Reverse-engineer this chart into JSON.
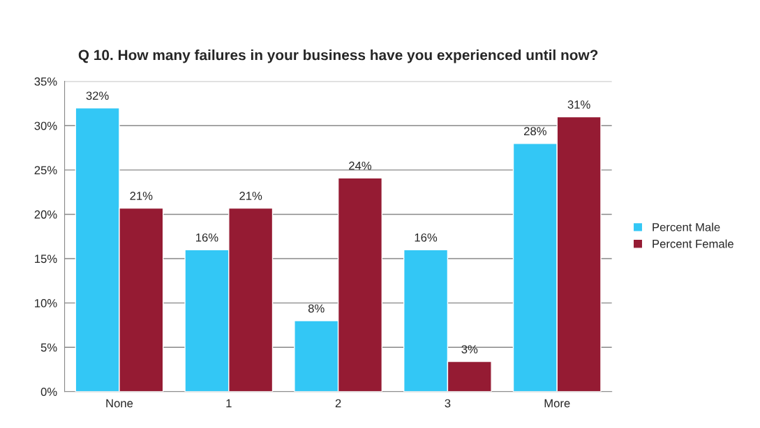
{
  "chart_data": {
    "type": "bar",
    "title": "Q 10. How many failures in your business have you experienced until now?",
    "categories": [
      "None",
      "1",
      "2",
      "3",
      "More"
    ],
    "series": [
      {
        "name": "Percent Male",
        "color": "#33c7f5",
        "values": [
          32,
          16,
          8,
          16,
          28
        ],
        "value_labels": [
          "32%",
          "16%",
          "8%",
          "16%",
          "28%"
        ]
      },
      {
        "name": "Percent Female",
        "color": "#951b33",
        "values": [
          20.7,
          20.7,
          24.1,
          3.4,
          31
        ],
        "value_labels": [
          "21%",
          "21%",
          "24%",
          "3%",
          "31%"
        ]
      }
    ],
    "ylim": [
      0,
      35
    ],
    "yticks": [
      {
        "value": 0,
        "label": "0%"
      },
      {
        "value": 5,
        "label": "5%"
      },
      {
        "value": 10,
        "label": "10%"
      },
      {
        "value": 15,
        "label": "15%"
      },
      {
        "value": 20,
        "label": "20%"
      },
      {
        "value": 25,
        "label": "25%"
      },
      {
        "value": 30,
        "label": "30%"
      },
      {
        "value": 35,
        "label": "35%"
      }
    ],
    "grid": "y",
    "legend": "right"
  }
}
